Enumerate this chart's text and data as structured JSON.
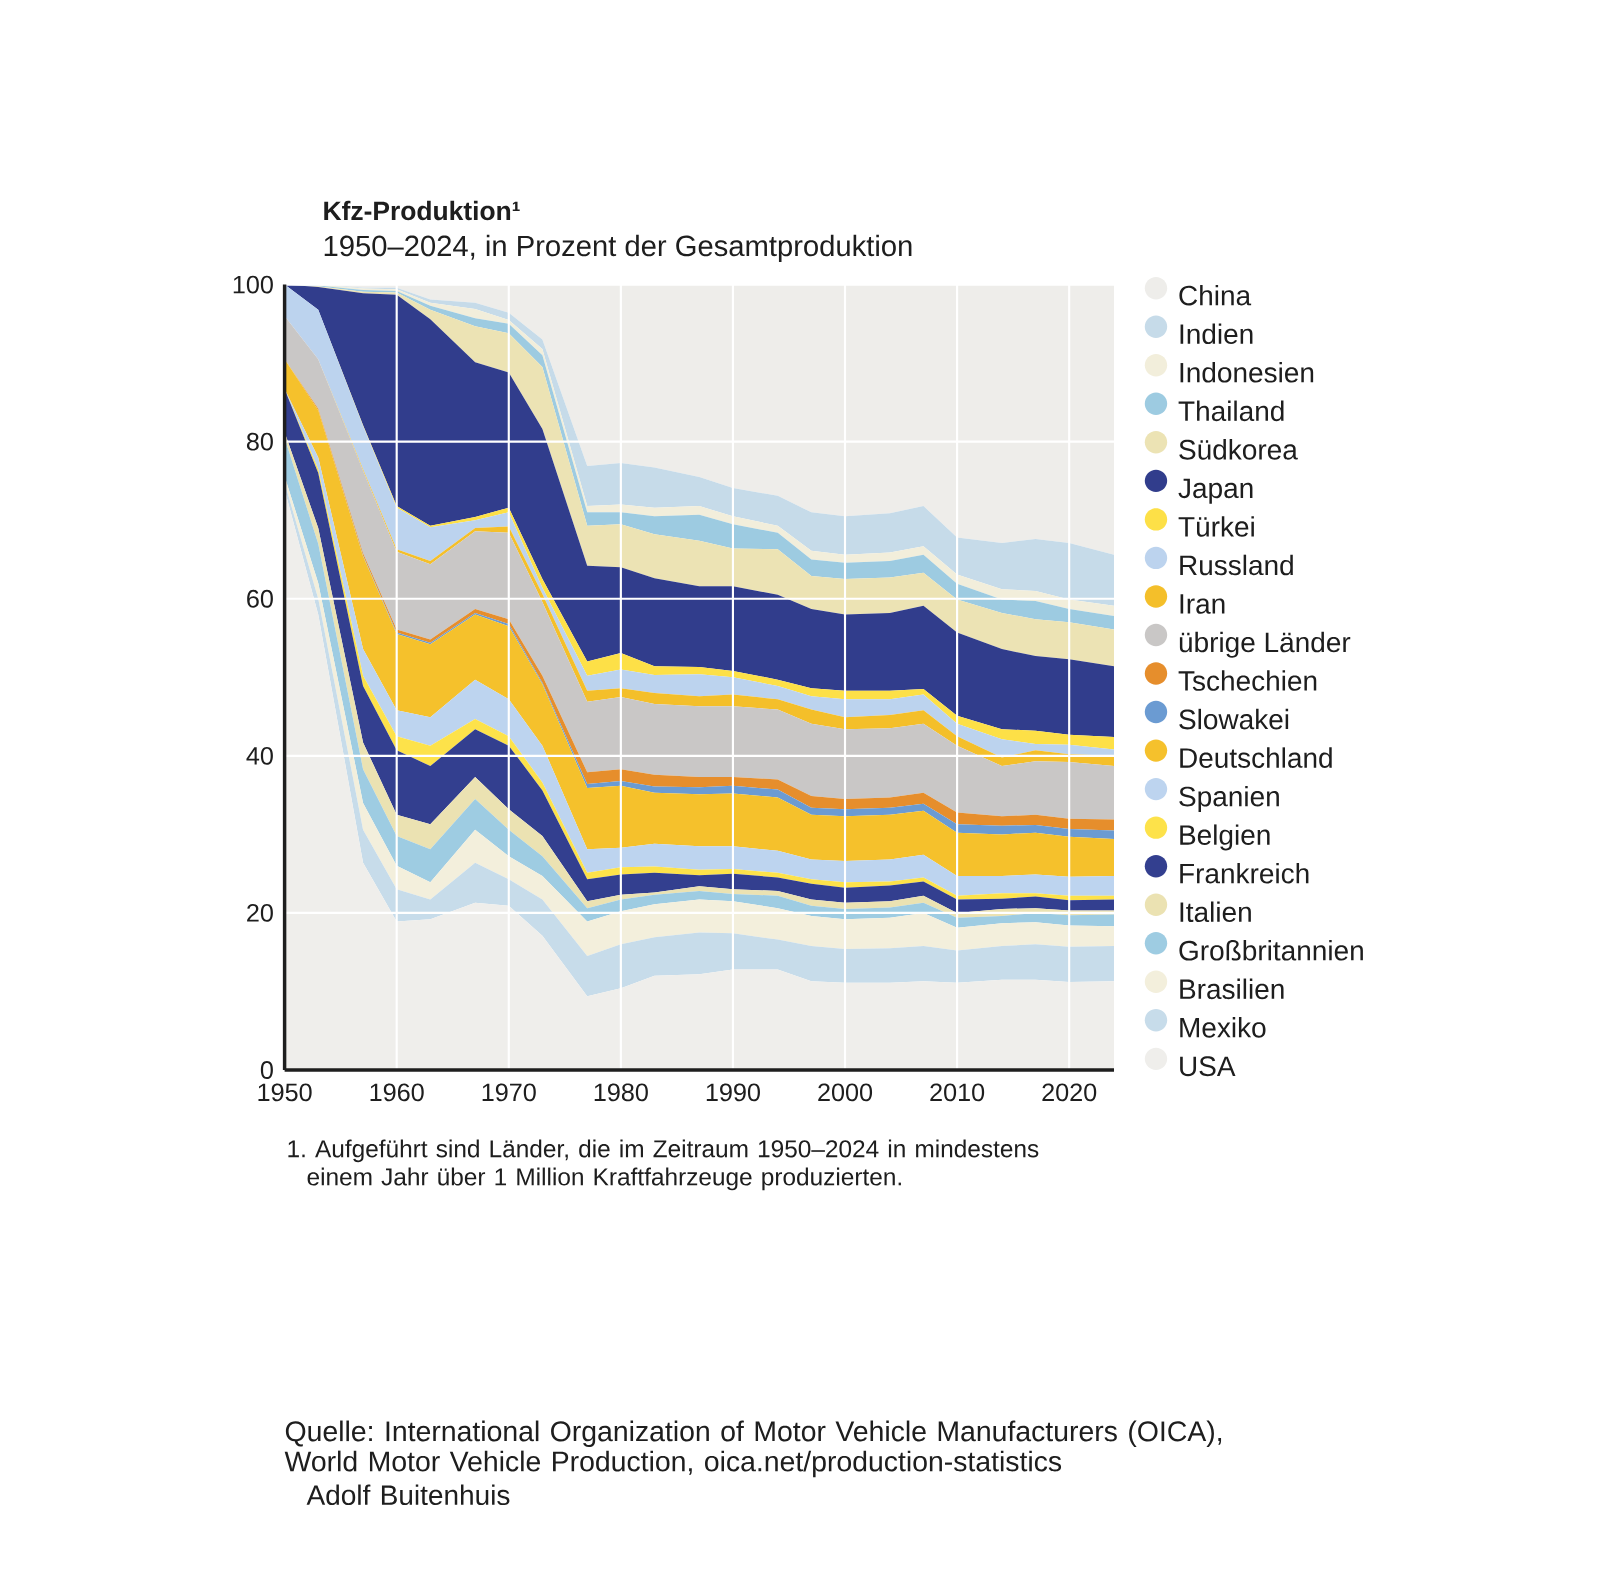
{
  "chart_data": {
    "type": "area",
    "stacked": true,
    "title": "Kfz-Produktion¹",
    "subtitle": "1950–2024, in Prozent der Gesamtproduktion",
    "x": [
      1950,
      1953,
      1957,
      1960,
      1963,
      1967,
      1970,
      1973,
      1977,
      1980,
      1983,
      1987,
      1990,
      1994,
      1997,
      2000,
      2004,
      2007,
      2010,
      2014,
      2017,
      2020,
      2024
    ],
    "xlim": [
      1950,
      2024
    ],
    "xticks": [
      1950,
      1960,
      1970,
      1980,
      1990,
      2000,
      2010,
      2020
    ],
    "ylim": [
      0,
      100
    ],
    "yticks": [
      0,
      20,
      40,
      60,
      80,
      100
    ],
    "grid": true,
    "legend": "right",
    "series": [
      {
        "name": "USA",
        "color": "#efeeeb",
        "values": [
          73.9,
          58.0,
          26.4,
          18.9,
          19.2,
          21.3,
          20.9,
          17.1,
          9.4,
          10.4,
          12.0,
          12.2,
          12.8,
          12.8,
          11.3,
          11.1,
          11.1,
          11.3,
          11.1,
          11.5,
          11.5,
          11.2,
          11.3
        ]
      },
      {
        "name": "Mexiko",
        "color": "#c7dcea",
        "values": [
          0.9,
          2.0,
          4.2,
          4.1,
          2.5,
          5.1,
          3.4,
          4.6,
          5.1,
          5.6,
          4.9,
          5.3,
          4.6,
          3.8,
          4.5,
          4.3,
          4.4,
          4.5,
          4.1,
          4.3,
          4.5,
          4.5,
          4.5
        ]
      },
      {
        "name": "Brasilien",
        "color": "#f3efdc",
        "values": [
          0.8,
          2.0,
          3.4,
          3.0,
          2.2,
          4.2,
          2.9,
          3.0,
          4.4,
          4.2,
          4.2,
          4.2,
          4.1,
          4.0,
          3.8,
          3.8,
          3.9,
          4.2,
          2.9,
          2.9,
          2.8,
          2.7,
          2.5
        ]
      },
      {
        "name": "Großbritannien",
        "color": "#9ecce2",
        "values": [
          4.9,
          5.0,
          4.3,
          3.8,
          4.2,
          3.9,
          3.4,
          2.5,
          1.7,
          1.5,
          1.2,
          1.1,
          0.9,
          1.6,
          1.3,
          1.3,
          1.3,
          1.3,
          1.3,
          0.9,
          1.2,
          1.3,
          1.5
        ]
      },
      {
        "name": "Italien",
        "color": "#ebe2b2",
        "values": [
          0.7,
          2.0,
          3.4,
          2.7,
          3.2,
          2.8,
          2.6,
          2.6,
          0.9,
          0.6,
          0.3,
          0.6,
          0.6,
          0.6,
          0.8,
          0.8,
          0.8,
          0.9,
          0.6,
          0.9,
          0.6,
          0.6,
          0.5
        ]
      },
      {
        "name": "Frankreich",
        "color": "#333f8f",
        "values": [
          5.5,
          7.0,
          7.2,
          8.2,
          7.4,
          6.1,
          8.1,
          5.8,
          2.8,
          2.6,
          2.5,
          1.4,
          2.0,
          1.7,
          2.0,
          1.9,
          2.0,
          1.8,
          1.7,
          1.3,
          1.5,
          1.3,
          1.4
        ]
      },
      {
        "name": "Belgien",
        "color": "#fde24a",
        "values": [
          0,
          0.5,
          1.3,
          1.8,
          2.6,
          1.3,
          1.2,
          1.0,
          0.8,
          0.9,
          0.8,
          0.7,
          0.6,
          0.6,
          0.6,
          0.7,
          0.5,
          0.5,
          0.5,
          0.7,
          0.4,
          0.6,
          0.5
        ]
      },
      {
        "name": "Spanien",
        "color": "#bdd4ef",
        "values": [
          0,
          1.5,
          3.4,
          3.3,
          3.6,
          5.0,
          4.7,
          4.7,
          3.0,
          2.5,
          2.9,
          3.0,
          2.9,
          2.8,
          2.5,
          2.7,
          2.8,
          2.9,
          2.5,
          2.2,
          2.4,
          2.4,
          2.5
        ]
      },
      {
        "name": "Deutschland",
        "color": "#f5c12c",
        "values": [
          3.8,
          6.0,
          11.8,
          9.7,
          9.3,
          8.3,
          9.3,
          7.8,
          7.8,
          7.9,
          6.5,
          6.6,
          6.7,
          6.8,
          5.7,
          5.7,
          5.7,
          5.6,
          5.5,
          5.3,
          5.3,
          5.1,
          4.7
        ]
      },
      {
        "name": "Slowakei",
        "color": "#6b9bd2",
        "values": [
          0,
          0,
          0.1,
          0.2,
          0.2,
          0.2,
          0.3,
          0.2,
          0.5,
          0.6,
          0.8,
          0.9,
          1.0,
          1.0,
          0.9,
          0.9,
          0.9,
          0.9,
          1.1,
          1.1,
          1.0,
          1.0,
          1.1
        ]
      },
      {
        "name": "Tschechien",
        "color": "#e68e2c",
        "values": [
          0,
          0.2,
          0.3,
          0.4,
          0.4,
          0.5,
          0.6,
          0.9,
          1.5,
          1.5,
          1.5,
          1.3,
          1.1,
          1.3,
          1.5,
          1.3,
          1.3,
          1.4,
          1.5,
          1.2,
          1.3,
          1.3,
          1.4
        ]
      },
      {
        "name": "übrige Länder",
        "color": "#c9c7c6",
        "values": [
          5.5,
          6.3,
          10.5,
          9.9,
          9.6,
          9.9,
          11.0,
          9.4,
          9.0,
          9.2,
          9.0,
          9.0,
          9.0,
          8.9,
          9.2,
          8.9,
          8.8,
          8.8,
          8.5,
          6.4,
          6.8,
          7.2,
          6.8
        ]
      },
      {
        "name": "Iran",
        "color": "#f4bf2a",
        "values": [
          0,
          0,
          0.2,
          0.3,
          0.4,
          0.4,
          0.8,
          1.0,
          1.4,
          1.1,
          1.4,
          1.3,
          1.5,
          1.3,
          1.8,
          1.5,
          1.7,
          1.7,
          1.2,
          1.1,
          1.4,
          1.0,
          1.3
        ]
      },
      {
        "name": "Russland",
        "color": "#bcd3ee",
        "values": [
          4.0,
          6.3,
          5.5,
          5.3,
          4.3,
          1.0,
          1.8,
          0.8,
          1.9,
          2.4,
          2.3,
          2.8,
          2.2,
          1.7,
          1.7,
          2.3,
          2.0,
          2.0,
          1.6,
          2.3,
          0.8,
          1.2,
          0.8
        ]
      },
      {
        "name": "Türkei",
        "color": "#fde047",
        "values": [
          0,
          0,
          0.1,
          0.2,
          0.2,
          0.4,
          0.6,
          1.1,
          1.8,
          2.1,
          1.1,
          0.9,
          0.8,
          0.8,
          1.0,
          1.1,
          1.1,
          0.7,
          1.0,
          1.3,
          1.7,
          1.3,
          1.6
        ]
      },
      {
        "name": "Japan",
        "color": "#313d8c",
        "values": [
          0,
          2.9,
          16.8,
          26.9,
          26.3,
          19.7,
          17.2,
          19.1,
          12.2,
          10.9,
          11.2,
          10.3,
          10.8,
          10.8,
          10.1,
          9.7,
          9.9,
          10.6,
          10.6,
          10.2,
          9.5,
          9.6,
          9.0
        ]
      },
      {
        "name": "Südkorea",
        "color": "#ece3b4",
        "values": [
          0,
          0.1,
          0.2,
          0.3,
          1.2,
          4.6,
          5.0,
          7.9,
          5.1,
          5.5,
          5.6,
          5.8,
          4.8,
          5.8,
          4.2,
          4.5,
          4.5,
          4.2,
          4.2,
          4.6,
          4.7,
          4.7,
          4.7
        ]
      },
      {
        "name": "Thailand",
        "color": "#9dcbe1",
        "values": [
          0,
          0.1,
          0.2,
          0.2,
          0.5,
          1.0,
          1.2,
          1.5,
          1.7,
          1.5,
          2.3,
          3.3,
          3.1,
          2.1,
          2.1,
          2.1,
          2.1,
          2.3,
          2.0,
          1.7,
          2.3,
          1.7,
          1.7
        ]
      },
      {
        "name": "Indonesien",
        "color": "#f2eedb",
        "values": [
          0,
          0.1,
          0.2,
          0.2,
          0.4,
          1.2,
          0.5,
          0.8,
          0.8,
          1.0,
          1.1,
          1.1,
          1.0,
          0.9,
          1.1,
          1.0,
          1.1,
          1.1,
          1.2,
          1.3,
          1.3,
          1.2,
          1.3
        ]
      },
      {
        "name": "Indien",
        "color": "#c6dbe9",
        "values": [
          0,
          0,
          0.1,
          0.2,
          0.4,
          0.8,
          0.9,
          1.2,
          5.1,
          5.3,
          5.1,
          3.7,
          3.6,
          3.8,
          4.9,
          4.9,
          5.0,
          5.1,
          4.7,
          5.9,
          6.6,
          7.2,
          6.5
        ]
      },
      {
        "name": "China",
        "color": "#eeedea",
        "values": [
          0,
          0,
          0.4,
          0.4,
          1.9,
          2.3,
          3.6,
          7.0,
          23.1,
          22.7,
          23.3,
          24.5,
          25.9,
          26.9,
          29.0,
          29.5,
          29.1,
          28.2,
          32.2,
          32.9,
          32.4,
          32.9,
          34.4
        ]
      }
    ],
    "annotations": [
      "1. Aufgeführt sind Länder, die im Zeitraum 1950–2024 in mindestens einem Jahr über 1 Million Kraftfahrzeuge produzierten.",
      "Quelle: International Organization of Motor Vehicle Manufacturers (OICA), World Motor Vehicle Production, oica.net/production-statistics",
      "Adolf Buitenhuis"
    ]
  }
}
